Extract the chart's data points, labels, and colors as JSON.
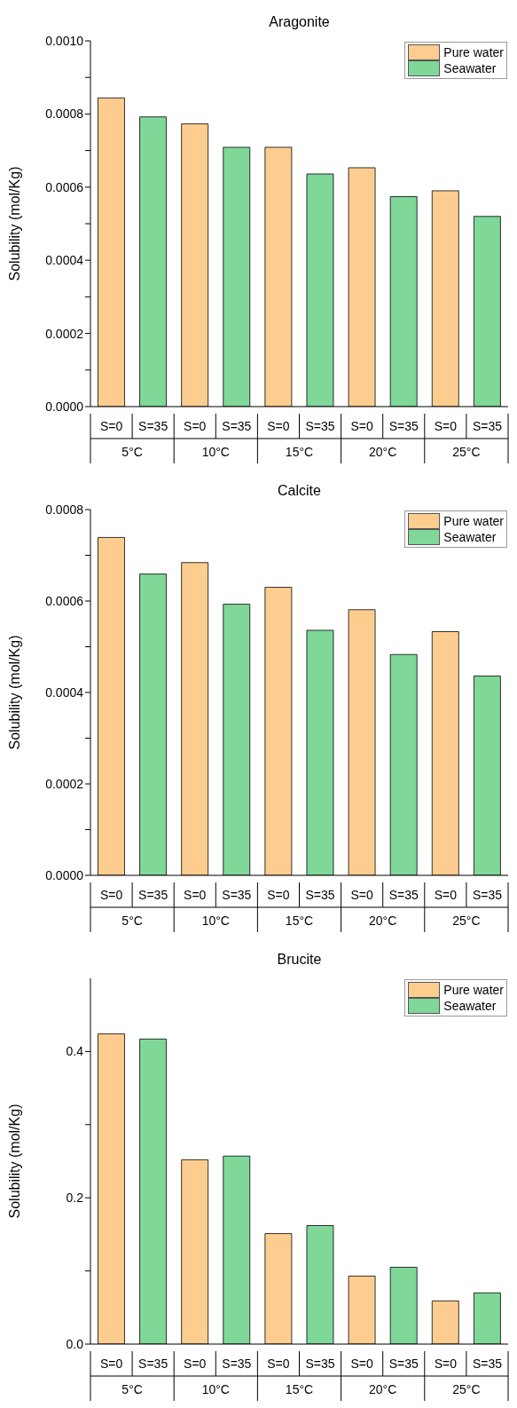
{
  "chart_data": [
    {
      "type": "bar",
      "title": "Aragonite",
      "ylabel": "Solubility (mol/Kg)",
      "categories": [
        "S=0",
        "S=35",
        "S=0",
        "S=35",
        "S=0",
        "S=35",
        "S=0",
        "S=35",
        "S=0",
        "S=35"
      ],
      "series": [
        {
          "name": "Pure water",
          "color": "#fdcd90",
          "values": [
            0.000844,
            null,
            0.000773,
            null,
            0.000709,
            null,
            0.000653,
            null,
            0.00059,
            null
          ]
        },
        {
          "name": "Seawater",
          "color": "#7fd798",
          "values": [
            null,
            0.000792,
            null,
            0.000709,
            null,
            0.000636,
            null,
            0.000574,
            null,
            0.00052
          ]
        }
      ],
      "ylim": [
        0,
        0.001
      ],
      "yticks": [
        {
          "value": 0,
          "label": "0.0000"
        },
        {
          "value": 0.0001,
          "label": null
        },
        {
          "value": 0.0002,
          "label": "0.0002"
        },
        {
          "value": 0.0003,
          "label": null
        },
        {
          "value": 0.0004,
          "label": "0.0004"
        },
        {
          "value": 0.0005,
          "label": null
        },
        {
          "value": 0.0006,
          "label": "0.0006"
        },
        {
          "value": 0.0007,
          "label": null
        },
        {
          "value": 0.0008,
          "label": "0.0008"
        },
        {
          "value": 0.0009,
          "label": null
        },
        {
          "value": 0.001,
          "label": "0.0010"
        }
      ],
      "annotations": [
        "5°C",
        "10°C",
        "15°C",
        "20°C",
        "25°C"
      ],
      "legend": "top right",
      "grid": false
    },
    {
      "type": "bar",
      "title": "Calcite",
      "ylabel": "Solubility (mol/Kg)",
      "categories": [
        "S=0",
        "S=35",
        "S=0",
        "S=35",
        "S=0",
        "S=35",
        "S=0",
        "S=35",
        "S=0",
        "S=35"
      ],
      "series": [
        {
          "name": "Pure water",
          "color": "#fdcd90",
          "values": [
            0.000739,
            null,
            0.000684,
            null,
            0.00063,
            null,
            0.000581,
            null,
            0.000533,
            null
          ]
        },
        {
          "name": "Seawater",
          "color": "#7fd798",
          "values": [
            null,
            0.000659,
            null,
            0.000593,
            null,
            0.000536,
            null,
            0.000483,
            null,
            0.000436
          ]
        }
      ],
      "ylim": [
        0,
        0.0008
      ],
      "yticks": [
        {
          "value": 0,
          "label": "0.0000"
        },
        {
          "value": 0.0001,
          "label": null
        },
        {
          "value": 0.0002,
          "label": "0.0002"
        },
        {
          "value": 0.0003,
          "label": null
        },
        {
          "value": 0.0004,
          "label": "0.0004"
        },
        {
          "value": 0.0005,
          "label": null
        },
        {
          "value": 0.0006,
          "label": "0.0006"
        },
        {
          "value": 0.0007,
          "label": null
        },
        {
          "value": 0.0008,
          "label": "0.0008"
        }
      ],
      "annotations": [
        "5°C",
        "10°C",
        "15°C",
        "20°C",
        "25°C"
      ],
      "legend": "top right",
      "grid": false
    },
    {
      "type": "bar",
      "title": "Brucite",
      "ylabel": "Solubility (mol/Kg)",
      "categories": [
        "S=0",
        "S=35",
        "S=0",
        "S=35",
        "S=0",
        "S=35",
        "S=0",
        "S=35",
        "S=0",
        "S=35"
      ],
      "series": [
        {
          "name": "Pure water",
          "color": "#fdcd90",
          "values": [
            0.424,
            null,
            0.252,
            null,
            0.151,
            null,
            0.093,
            null,
            0.059,
            null
          ]
        },
        {
          "name": "Seawater",
          "color": "#7fd798",
          "values": [
            null,
            0.417,
            null,
            0.257,
            null,
            0.162,
            null,
            0.105,
            null,
            0.07
          ]
        }
      ],
      "ylim": [
        0,
        0.5
      ],
      "yticks": [
        {
          "value": 0,
          "label": "0.0"
        },
        {
          "value": 0.1,
          "label": null
        },
        {
          "value": 0.2,
          "label": "0.2"
        },
        {
          "value": 0.3,
          "label": null
        },
        {
          "value": 0.4,
          "label": "0.4"
        }
      ],
      "annotations": [
        "5°C",
        "10°C",
        "15°C",
        "20°C",
        "25°C"
      ],
      "legend": "top right",
      "grid": false
    }
  ]
}
